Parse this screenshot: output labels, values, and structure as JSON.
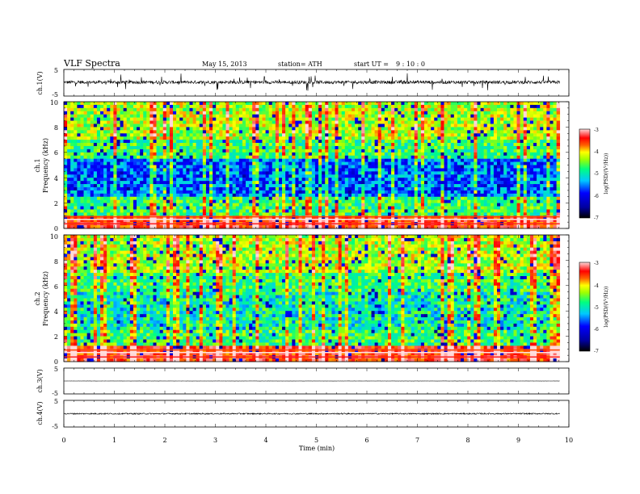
{
  "header": {
    "title": "VLF Spectra",
    "date": "May 15, 2013",
    "station": "station= ATH",
    "start_label": "start UT =",
    "start_time": "9 : 10 : 0"
  },
  "chart_data": [
    {
      "type": "line",
      "panel": "ch1-waveform",
      "ylabel": "ch.1(V)",
      "ylim": [
        -5,
        5
      ],
      "yticks": [
        "5",
        "-5"
      ],
      "xlim": [
        0,
        10
      ],
      "mean_value": 0.2,
      "grid": false
    },
    {
      "type": "heatmap",
      "panel": "ch1-spectrogram",
      "ylabel_channel": "ch.1",
      "ylabel": "Frequency (kHz)",
      "ylim": [
        0,
        10
      ],
      "yticks": [
        "0",
        "2",
        "4",
        "6",
        "8",
        "10"
      ],
      "xlim": [
        0,
        9.82
      ],
      "low_band_khz": [
        0,
        1
      ],
      "colorbar": {
        "label": "log(PSD/(V²/Hz))",
        "range": [
          -7,
          -3
        ],
        "ticks": [
          "-3",
          "-4",
          "-5",
          "-6",
          "-7"
        ]
      }
    },
    {
      "type": "heatmap",
      "panel": "ch2-spectrogram",
      "ylabel_channel": "ch.2",
      "ylabel": "Frequency (kHz)",
      "ylim": [
        0,
        10
      ],
      "yticks": [
        "0",
        "2",
        "4",
        "6",
        "8",
        "10"
      ],
      "xlim": [
        0,
        9.82
      ],
      "low_band_khz": [
        0,
        1.2
      ],
      "colorbar": {
        "label": "log(PSD/(V²/Hz))",
        "range": [
          -7,
          -3
        ],
        "ticks": [
          "-3",
          "-4",
          "-5",
          "-6",
          "-7"
        ]
      }
    },
    {
      "type": "line",
      "panel": "ch3-waveform",
      "ylabel": "ch.3(V)",
      "ylim": [
        -5,
        5
      ],
      "yticks": [
        "5",
        "-5"
      ],
      "mean_value": 0.0
    },
    {
      "type": "line",
      "panel": "ch4-waveform",
      "ylabel": "ch.4(V)",
      "ylim": [
        -5,
        5
      ],
      "yticks": [
        "5",
        "-5"
      ],
      "mean_value": 0.0
    }
  ],
  "xaxis": {
    "label": "Time (min)",
    "range": [
      0,
      10
    ],
    "ticks": [
      "0",
      "1",
      "2",
      "3",
      "4",
      "5",
      "6",
      "7",
      "8",
      "9",
      "10"
    ]
  },
  "colors": {
    "low": "#000066",
    "mid_low": "#0000ff",
    "mid": "#00e0ff",
    "mid_high": "#00ff66",
    "high": "#ffff00",
    "peak": "#ff0000",
    "saturation": "#ffd0d0"
  }
}
